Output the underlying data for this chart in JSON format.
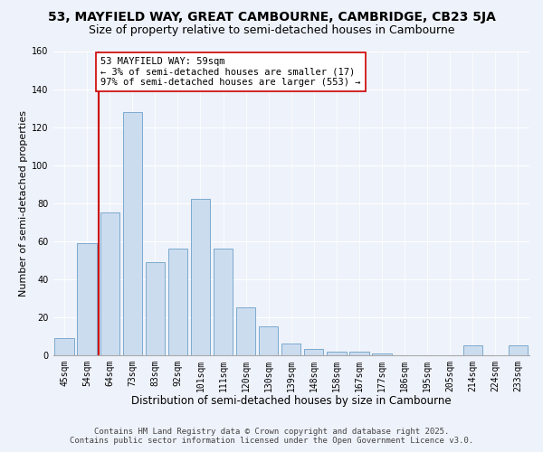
{
  "title": "53, MAYFIELD WAY, GREAT CAMBOURNE, CAMBRIDGE, CB23 5JA",
  "subtitle": "Size of property relative to semi-detached houses in Cambourne",
  "xlabel": "Distribution of semi-detached houses by size in Cambourne",
  "ylabel": "Number of semi-detached properties",
  "categories": [
    "45sqm",
    "54sqm",
    "64sqm",
    "73sqm",
    "83sqm",
    "92sqm",
    "101sqm",
    "111sqm",
    "120sqm",
    "130sqm",
    "139sqm",
    "148sqm",
    "158sqm",
    "167sqm",
    "177sqm",
    "186sqm",
    "195sqm",
    "205sqm",
    "214sqm",
    "224sqm",
    "233sqm"
  ],
  "values": [
    9,
    59,
    75,
    128,
    49,
    56,
    82,
    56,
    25,
    15,
    6,
    3,
    2,
    2,
    1,
    0,
    0,
    0,
    5,
    0,
    5
  ],
  "bar_color": "#ccdcef",
  "bar_edge_color": "#7aaace",
  "highlight_color": "#cc0000",
  "annotation_text": "53 MAYFIELD WAY: 59sqm",
  "annotation_line2": "← 3% of semi-detached houses are smaller (17)",
  "annotation_line3": "97% of semi-detached houses are larger (553) →",
  "annotation_box_color": "#ffffff",
  "annotation_box_edge": "#cc0000",
  "ylim": [
    0,
    160
  ],
  "yticks": [
    0,
    20,
    40,
    60,
    80,
    100,
    120,
    140,
    160
  ],
  "background_color": "#eef2fa",
  "footer_line1": "Contains HM Land Registry data © Crown copyright and database right 2025.",
  "footer_line2": "Contains public sector information licensed under the Open Government Licence v3.0.",
  "title_fontsize": 10,
  "subtitle_fontsize": 9,
  "xlabel_fontsize": 8.5,
  "ylabel_fontsize": 8,
  "tick_fontsize": 7,
  "annot_fontsize": 7.5,
  "footer_fontsize": 6.5
}
